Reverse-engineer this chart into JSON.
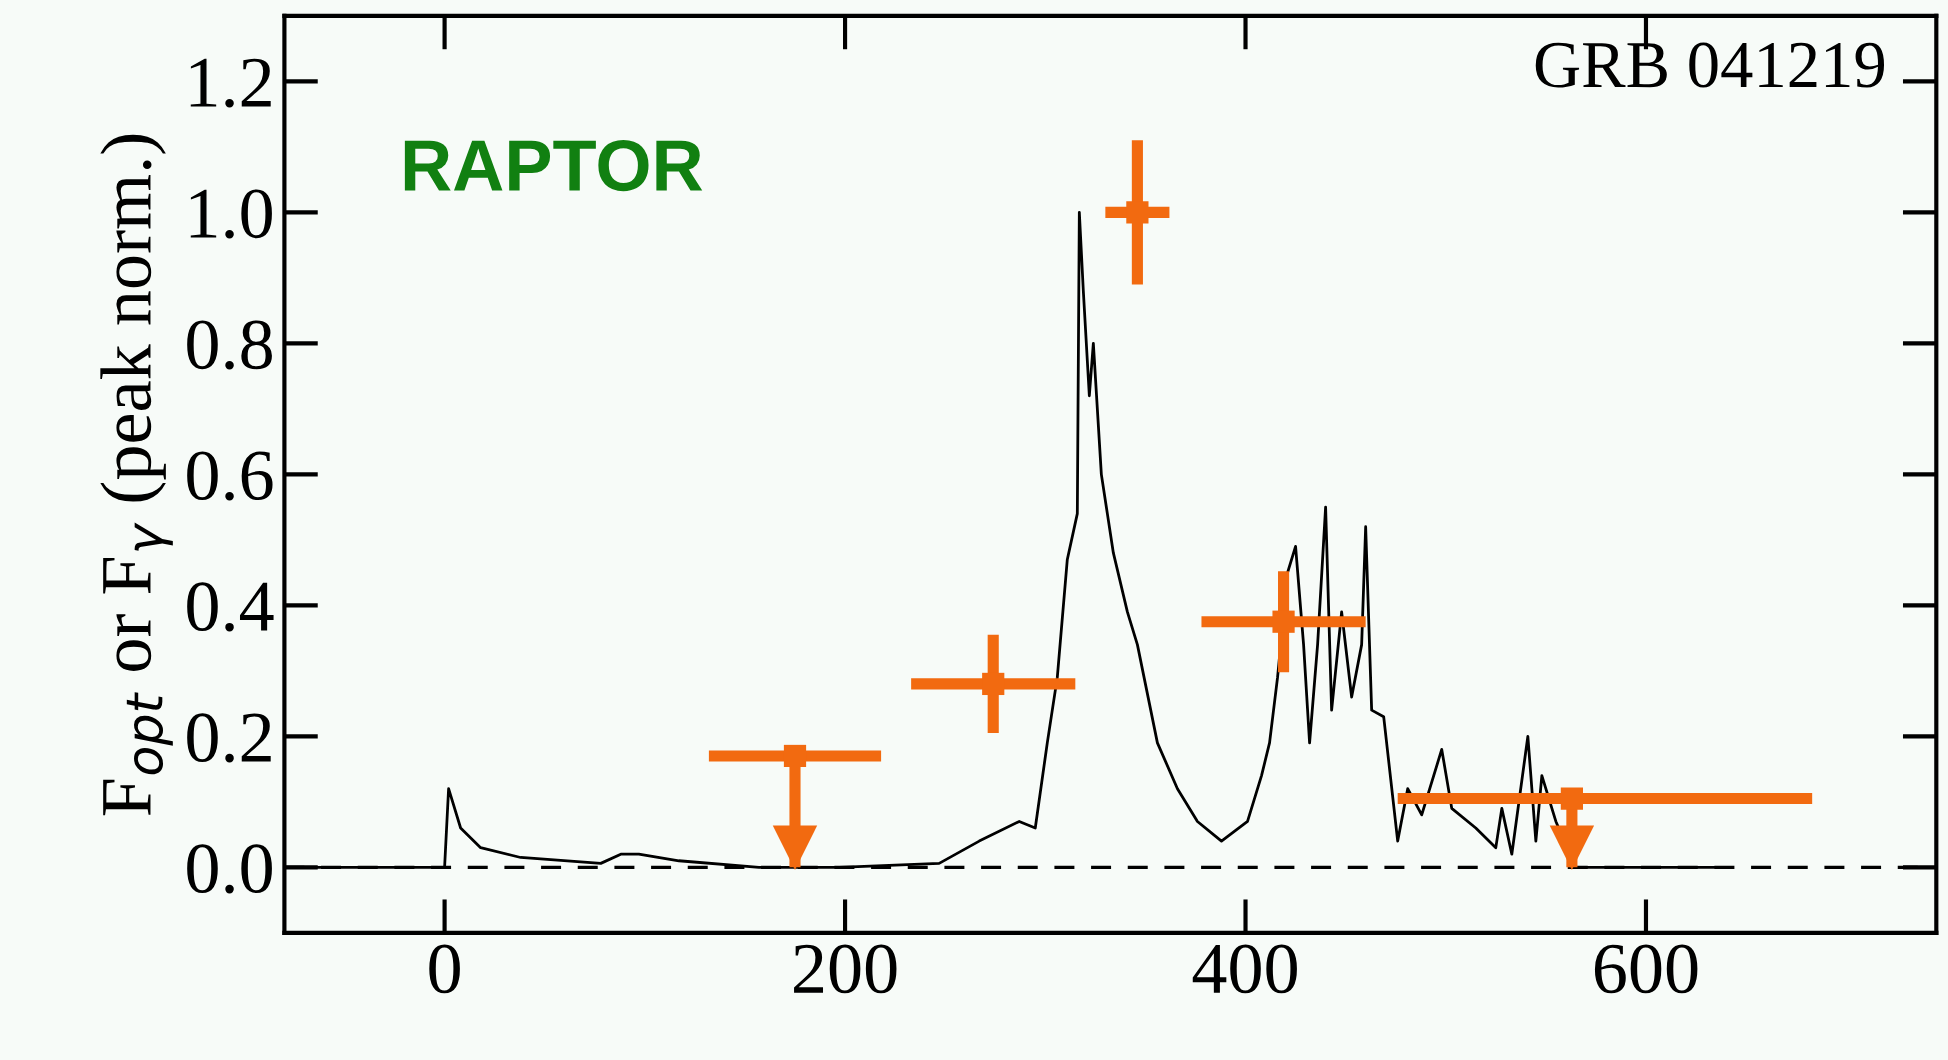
{
  "chart_data": {
    "type": "line",
    "ylabel": "F$_{opt}$ or F$_{γ}$ (peak norm.)",
    "annotations": [
      "GRB 041219",
      "RAPTOR"
    ],
    "xlim": [
      -80,
      745
    ],
    "ylim": [
      -0.1,
      1.3
    ],
    "xticks": [
      0,
      200,
      400,
      600
    ],
    "yticks": [
      {
        "value": 0,
        "label": "0.0"
      },
      {
        "value": 0.2,
        "label": "0.2"
      },
      {
        "value": 0.4,
        "label": "0.4"
      },
      {
        "value": 0.6,
        "label": "0.6"
      },
      {
        "value": 0.8,
        "label": "0.8"
      },
      {
        "value": 1.0,
        "label": "1.0"
      },
      {
        "value": 1.2,
        "label": "1.2"
      }
    ],
    "grid": false,
    "legend": false,
    "ref_lines": [
      {
        "axis": "y",
        "value": 0,
        "line_style": "dashed",
        "color": "#000000"
      }
    ],
    "series": [
      {
        "color": "#000000",
        "marker": "none",
        "line_style": "solid",
        "x": [
          -80,
          0,
          2,
          8,
          18,
          38,
          78,
          88,
          97,
          117,
          157,
          197,
          247,
          267,
          287,
          295,
          301,
          306,
          311,
          316,
          317,
          319,
          322,
          324,
          328,
          331,
          334,
          341,
          346,
          356,
          366,
          376,
          388,
          401,
          408,
          412,
          416,
          421,
          425,
          429,
          432,
          436,
          440,
          443,
          448,
          453,
          458,
          460,
          463,
          469,
          476,
          481,
          488,
          498,
          503,
          515,
          525,
          528,
          533,
          541,
          545,
          548,
          555,
          565,
          595,
          635
        ],
        "values": [
          0.0,
          0.0,
          0.12,
          0.06,
          0.03,
          0.015,
          0.006,
          0.02,
          0.02,
          0.01,
          0.0,
          0.0,
          0.006,
          0.04,
          0.07,
          0.06,
          0.19,
          0.29,
          0.47,
          0.54,
          1.0,
          0.88,
          0.72,
          0.8,
          0.6,
          0.54,
          0.48,
          0.39,
          0.34,
          0.19,
          0.12,
          0.07,
          0.04,
          0.07,
          0.14,
          0.19,
          0.29,
          0.45,
          0.49,
          0.34,
          0.19,
          0.34,
          0.55,
          0.24,
          0.39,
          0.26,
          0.34,
          0.52,
          0.24,
          0.23,
          0.04,
          0.12,
          0.08,
          0.18,
          0.09,
          0.06,
          0.03,
          0.09,
          0.02,
          0.2,
          0.04,
          0.14,
          0.07,
          0.0,
          0.0,
          0.0
        ]
      },
      {
        "type": "scatter",
        "color": "#f26a10",
        "marker": "square",
        "x": [
          274,
          346,
          419
        ],
        "values": [
          0.28,
          1.0,
          0.375
        ],
        "errors": [
          0.075,
          0.11,
          0.077
        ],
        "xerrors": [
          41,
          16,
          41
        ]
      },
      {
        "type": "scatter",
        "color": "#f26a10",
        "marker": "square",
        "x": [
          175,
          563
        ],
        "values": [
          0.17,
          0.105
        ],
        "errors": [
          [
            0.0,
            0.17
          ],
          [
            0.0,
            0.105
          ]
        ],
        "xerrors": [
          [
            132,
            218
          ],
          [
            476,
            683
          ]
        ]
      }
    ]
  }
}
